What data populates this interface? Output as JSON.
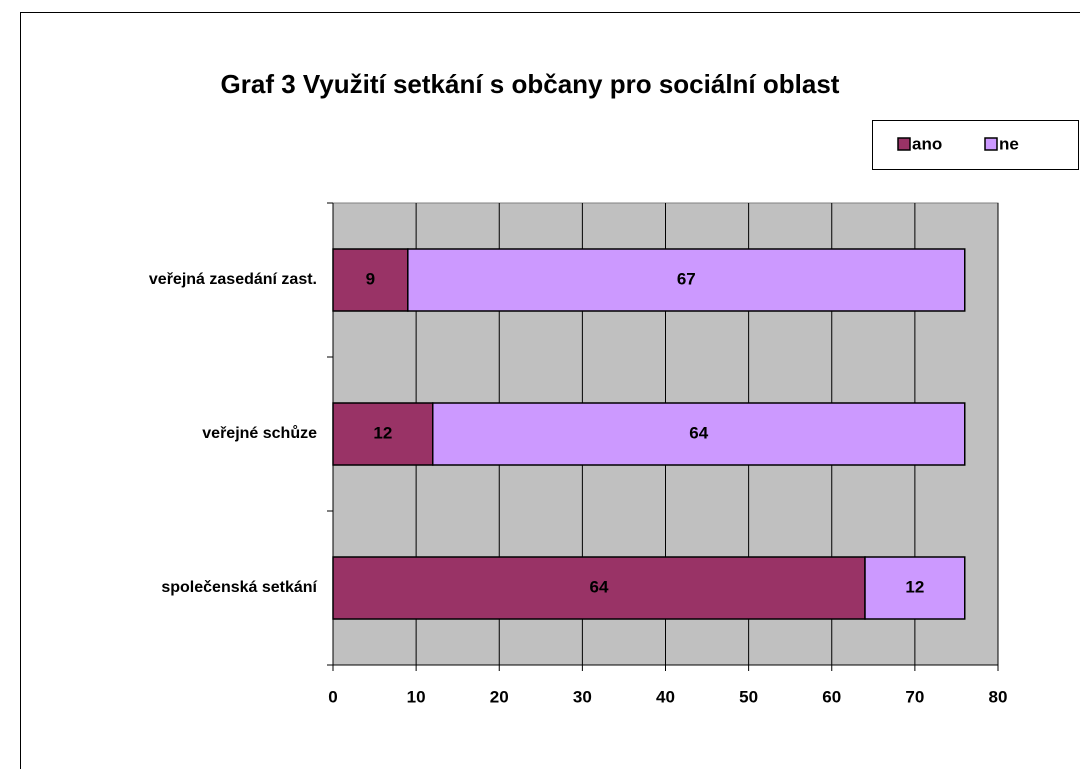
{
  "chart_data": {
    "type": "stacked-bar-horizontal",
    "title": "Graf 3 Využití setkání s občany pro sociální oblast",
    "categories": [
      "veřejná zasedání zast.",
      "veřejné schůze",
      "společenská setkání"
    ],
    "series": [
      {
        "name": "ano",
        "color": "#993366",
        "values": [
          9,
          12,
          64
        ]
      },
      {
        "name": "ne",
        "color": "#cc99ff",
        "values": [
          67,
          64,
          12
        ]
      }
    ],
    "xlim": [
      0,
      80
    ],
    "xticks": [
      0,
      10,
      20,
      30,
      40,
      50,
      60,
      70,
      80
    ],
    "grid": true,
    "legend": "top-right"
  }
}
